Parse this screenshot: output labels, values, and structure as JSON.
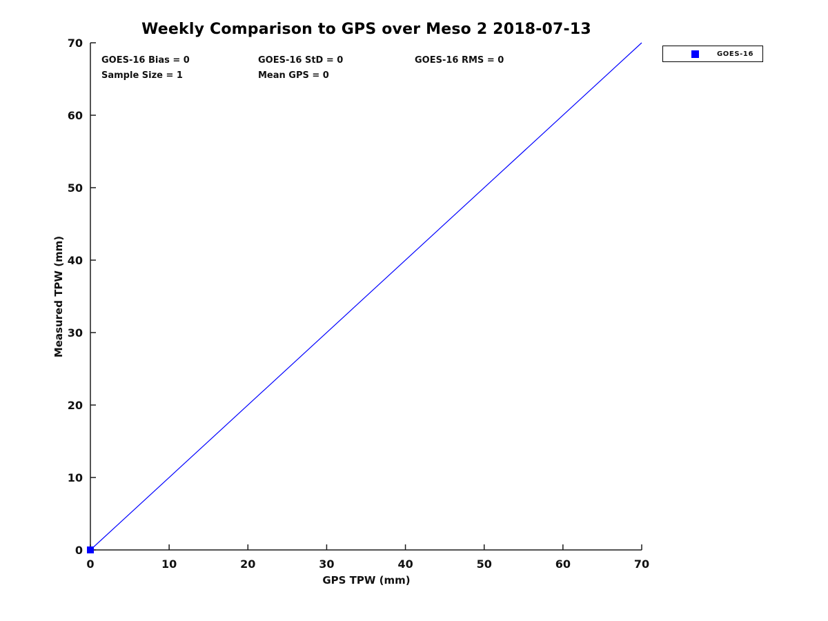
{
  "title": "Weekly Comparison to GPS over Meso 2 2018-07-13",
  "stats": {
    "row1": [
      "GOES-16 Bias = 0",
      "GOES-16 StD = 0",
      "GOES-16 RMS = 0"
    ],
    "row2": [
      "Sample Size = 1",
      "Mean GPS = 0"
    ]
  },
  "legend": {
    "label": "GOES-16",
    "marker": "square",
    "marker_color": "#0000FF",
    "position": "top-right-outside"
  },
  "chart_data": {
    "type": "line",
    "title": "Weekly Comparison to GPS over Meso 2 2018-07-13",
    "xlabel": "GPS TPW (mm)",
    "ylabel": "Measured TPW (mm)",
    "xlim": [
      0,
      70
    ],
    "ylim": [
      0,
      70
    ],
    "xticks": [
      0,
      10,
      20,
      30,
      40,
      50,
      60,
      70
    ],
    "yticks": [
      0,
      10,
      20,
      30,
      40,
      50,
      60,
      70
    ],
    "grid": false,
    "axis_color": "#1a1a1a",
    "tick_label_color": "#111111",
    "annotations": [
      "GOES-16 Bias = 0",
      "GOES-16 StD = 0",
      "GOES-16 RMS = 0",
      "Sample Size = 1",
      "Mean GPS = 0"
    ],
    "series": [
      {
        "name": "GOES-16",
        "kind": "line",
        "color": "#0000FF",
        "x": [
          0,
          70
        ],
        "y": [
          0,
          70
        ]
      },
      {
        "name": "GOES-16",
        "kind": "scatter",
        "marker": "square",
        "color": "#0000FF",
        "x": [
          0
        ],
        "y": [
          0
        ]
      }
    ]
  }
}
